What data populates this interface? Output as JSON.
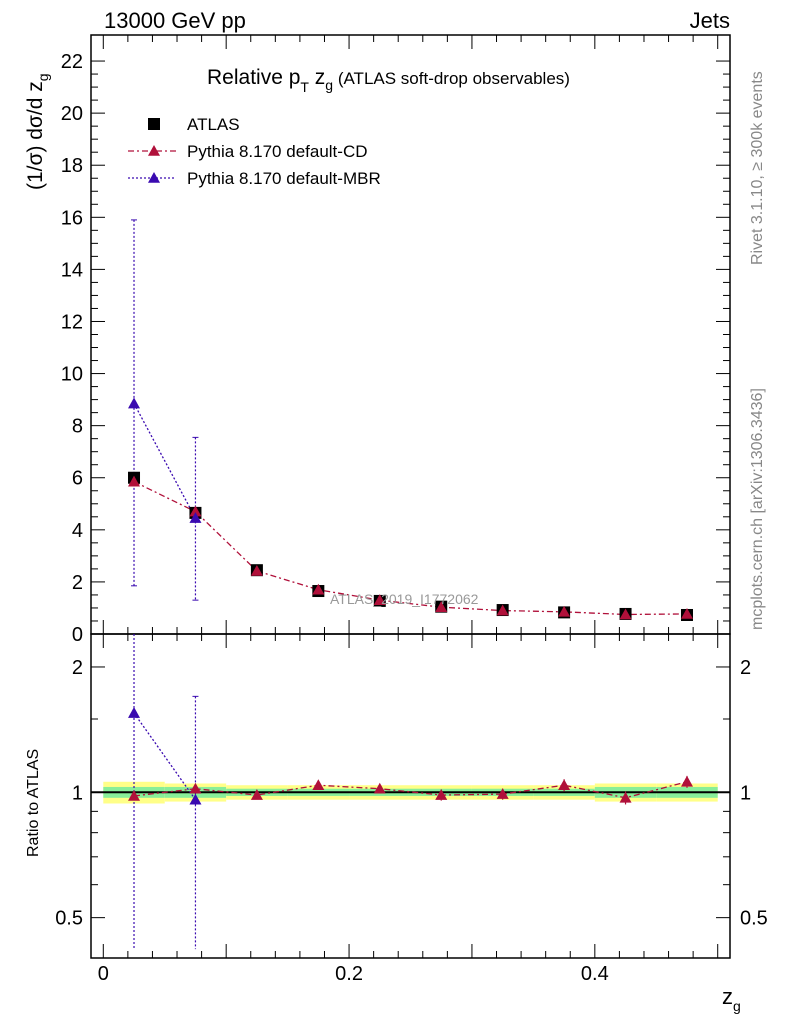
{
  "header": {
    "left": "13000 GeV pp",
    "right": "Jets"
  },
  "title": {
    "main": "Relative p",
    "sub_T": "T",
    "mid": " z",
    "sub_g": "g",
    "paren": " (ATLAS soft-drop observables)"
  },
  "side_text": {
    "rivet": "Rivet 3.1.10, ≥ 300k events",
    "mcplots": "mcplots.cern.ch [arXiv:1306.3436]"
  },
  "watermark": "ATLAS_2019_I1772062",
  "axes": {
    "ylabel_main": "(1/σ) dσ/d z",
    "ylabel_main_sub": "g",
    "ylabel_ratio": "Ratio to ATLAS",
    "xlabel": "z",
    "xlabel_sub": "g"
  },
  "legend": [
    {
      "label": "ATLAS",
      "marker": "square",
      "color": "#000000"
    },
    {
      "label": "Pythia 8.170 default-CD",
      "marker": "triangle",
      "color": "#b0103a"
    },
    {
      "label": "Pythia 8.170 default-MBR",
      "marker": "triangle",
      "color": "#3a0ab0"
    }
  ],
  "chart_data": [
    {
      "type": "scatter",
      "panel": "main",
      "xlim": [
        -0.01,
        0.51
      ],
      "ylim": [
        0,
        23
      ],
      "xticks": [
        0,
        0.2,
        0.4
      ],
      "yticks": [
        0,
        2,
        4,
        6,
        8,
        10,
        12,
        14,
        16,
        18,
        20,
        22
      ],
      "x": [
        0.025,
        0.075,
        0.125,
        0.175,
        0.225,
        0.275,
        0.325,
        0.375,
        0.425,
        0.475
      ],
      "series": [
        {
          "name": "ATLAS",
          "color": "#000000",
          "marker": "square",
          "values": [
            6.0,
            4.65,
            2.45,
            1.65,
            1.27,
            1.05,
            0.92,
            0.83,
            0.77,
            0.73
          ]
        },
        {
          "name": "Pythia 8.170 default-CD",
          "color": "#b0103a",
          "marker": "triangle",
          "values": [
            5.85,
            4.7,
            2.42,
            1.7,
            1.3,
            1.03,
            0.9,
            0.85,
            0.75,
            0.77
          ]
        },
        {
          "name": "Pythia 8.170 default-MBR",
          "color": "#3a0ab0",
          "marker": "triangle",
          "x": [
            0.025,
            0.075
          ],
          "values": [
            8.85,
            4.45
          ],
          "err_low": [
            1.85,
            1.3
          ],
          "err_high": [
            15.9,
            7.55
          ]
        }
      ]
    },
    {
      "type": "scatter",
      "panel": "ratio",
      "xlim": [
        -0.01,
        0.51
      ],
      "ylim": [
        0.4,
        2.4
      ],
      "log_y": true,
      "yticks": [
        0.5,
        1,
        2
      ],
      "x": [
        0.025,
        0.075,
        0.125,
        0.175,
        0.225,
        0.275,
        0.325,
        0.375,
        0.425,
        0.475
      ],
      "band_inner": [
        0.03,
        0.03,
        0.02,
        0.02,
        0.02,
        0.02,
        0.02,
        0.02,
        0.03,
        0.03
      ],
      "band_outer": [
        0.06,
        0.05,
        0.04,
        0.04,
        0.04,
        0.04,
        0.04,
        0.04,
        0.05,
        0.05
      ],
      "series": [
        {
          "name": "Pythia 8.170 default-CD",
          "color": "#b0103a",
          "marker": "triangle",
          "values": [
            0.98,
            1.02,
            0.985,
            1.04,
            1.02,
            0.985,
            0.99,
            1.04,
            0.97,
            1.06
          ],
          "err": [
            0.02,
            0.02,
            0.015,
            0.025,
            0.025,
            0.03,
            0.03,
            0.035,
            0.035,
            0.035
          ]
        },
        {
          "name": "Pythia 8.170 default-MBR",
          "color": "#3a0ab0",
          "marker": "triangle",
          "x": [
            0.025,
            0.075
          ],
          "values": [
            1.55,
            0.96
          ],
          "err_low": [
            0.42,
            0.42
          ],
          "err_high": [
            2.4,
            1.7
          ]
        }
      ]
    }
  ]
}
